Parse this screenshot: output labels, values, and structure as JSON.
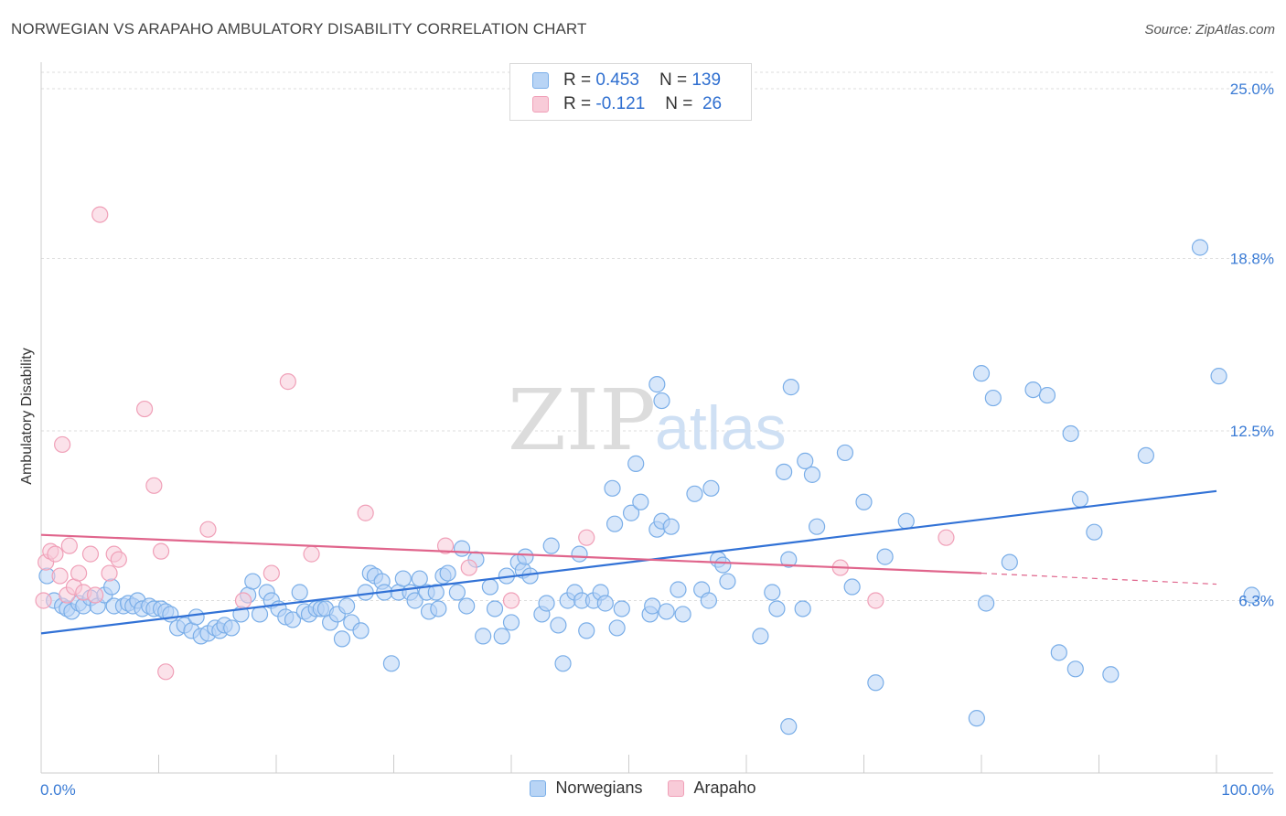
{
  "title": "NORWEGIAN VS ARAPAHO AMBULATORY DISABILITY CORRELATION CHART",
  "source": "Source: ZipAtlas.com",
  "watermark": {
    "zip": "ZIP",
    "atlas": "atlas"
  },
  "legend": {
    "rows": [
      {
        "r_label": "R =",
        "r_value": "0.453",
        "n_label": "N =",
        "n_value": "139",
        "color": "#7aaee8",
        "fill": "#b8d4f5"
      },
      {
        "r_label": "R =",
        "r_value": "-0.121",
        "n_label": "N =",
        "n_value": "26",
        "color": "#f0a0b8",
        "fill": "#f8cbd8"
      }
    ]
  },
  "bottom_legend": [
    {
      "label": "Norwegians",
      "color": "#7aaee8",
      "fill": "#b8d4f5"
    },
    {
      "label": "Arapaho",
      "color": "#f0a0b8",
      "fill": "#f8cbd8"
    }
  ],
  "chart_data": {
    "type": "scatter",
    "title": "NORWEGIAN VS ARAPAHO AMBULATORY DISABILITY CORRELATION CHART",
    "xlabel": "",
    "ylabel": "Ambulatory Disability",
    "xlim": [
      0,
      100
    ],
    "ylim": [
      0,
      25.6
    ],
    "x_tick_labels": [
      "0.0%",
      "100.0%"
    ],
    "y_ticks": [
      6.3,
      12.5,
      18.8,
      25.0
    ],
    "y_tick_labels": [
      "6.3%",
      "12.5%",
      "18.8%",
      "25.0%"
    ],
    "grid": true,
    "series": [
      {
        "name": "Norwegians",
        "color": "#7aaee8",
        "fill": "#b8d4f5",
        "trend": {
          "x": [
            0,
            100
          ],
          "y": [
            5.1,
            10.3
          ],
          "color": "#3272d6"
        },
        "points": [
          [
            0.5,
            7.2
          ],
          [
            1.1,
            6.3
          ],
          [
            1.8,
            6.1
          ],
          [
            2.2,
            6.0
          ],
          [
            2.6,
            5.9
          ],
          [
            3.2,
            6.2
          ],
          [
            3.6,
            6.1
          ],
          [
            4.2,
            6.4
          ],
          [
            4.8,
            6.1
          ],
          [
            5.4,
            6.5
          ],
          [
            6.0,
            6.8
          ],
          [
            6.2,
            6.1
          ],
          [
            7.0,
            6.1
          ],
          [
            7.4,
            6.2
          ],
          [
            7.8,
            6.1
          ],
          [
            8.2,
            6.3
          ],
          [
            8.6,
            6.0
          ],
          [
            9.2,
            6.1
          ],
          [
            9.6,
            6.0
          ],
          [
            10.2,
            6.0
          ],
          [
            10.6,
            5.9
          ],
          [
            11.0,
            5.8
          ],
          [
            11.6,
            5.3
          ],
          [
            12.2,
            5.4
          ],
          [
            12.8,
            5.2
          ],
          [
            13.2,
            5.7
          ],
          [
            13.6,
            5.0
          ],
          [
            14.2,
            5.1
          ],
          [
            14.8,
            5.3
          ],
          [
            15.2,
            5.2
          ],
          [
            15.6,
            5.4
          ],
          [
            16.2,
            5.3
          ],
          [
            17.0,
            5.8
          ],
          [
            17.6,
            6.5
          ],
          [
            18.0,
            7.0
          ],
          [
            18.6,
            5.8
          ],
          [
            19.2,
            6.6
          ],
          [
            19.6,
            6.3
          ],
          [
            20.2,
            6.0
          ],
          [
            20.8,
            5.7
          ],
          [
            21.4,
            5.6
          ],
          [
            22.0,
            6.6
          ],
          [
            22.4,
            5.9
          ],
          [
            22.8,
            5.8
          ],
          [
            23.4,
            6.0
          ],
          [
            23.8,
            6.0
          ],
          [
            24.2,
            6.0
          ],
          [
            24.6,
            5.5
          ],
          [
            25.2,
            5.8
          ],
          [
            25.6,
            4.9
          ],
          [
            26.0,
            6.1
          ],
          [
            26.4,
            5.5
          ],
          [
            27.2,
            5.2
          ],
          [
            27.6,
            6.6
          ],
          [
            28.0,
            7.3
          ],
          [
            28.4,
            7.2
          ],
          [
            29.0,
            7.0
          ],
          [
            29.2,
            6.6
          ],
          [
            29.8,
            4.0
          ],
          [
            30.4,
            6.6
          ],
          [
            30.8,
            7.1
          ],
          [
            31.4,
            6.6
          ],
          [
            31.8,
            6.3
          ],
          [
            32.2,
            7.1
          ],
          [
            32.8,
            6.6
          ],
          [
            33.0,
            5.9
          ],
          [
            33.6,
            6.6
          ],
          [
            33.8,
            6.0
          ],
          [
            34.2,
            7.2
          ],
          [
            34.6,
            7.3
          ],
          [
            35.4,
            6.6
          ],
          [
            35.8,
            8.2
          ],
          [
            36.2,
            6.1
          ],
          [
            37.0,
            7.8
          ],
          [
            37.6,
            5.0
          ],
          [
            38.2,
            6.8
          ],
          [
            38.6,
            6.0
          ],
          [
            39.2,
            5.0
          ],
          [
            39.6,
            7.2
          ],
          [
            40.0,
            5.5
          ],
          [
            40.6,
            7.7
          ],
          [
            41.0,
            7.4
          ],
          [
            41.2,
            7.9
          ],
          [
            41.6,
            7.2
          ],
          [
            42.6,
            5.8
          ],
          [
            43.0,
            6.2
          ],
          [
            43.4,
            8.3
          ],
          [
            44.0,
            5.4
          ],
          [
            44.4,
            4.0
          ],
          [
            44.8,
            6.3
          ],
          [
            45.4,
            6.6
          ],
          [
            45.8,
            8.0
          ],
          [
            46.0,
            6.3
          ],
          [
            46.4,
            5.2
          ],
          [
            47.0,
            6.3
          ],
          [
            47.6,
            6.6
          ],
          [
            48.0,
            6.2
          ],
          [
            48.8,
            9.1
          ],
          [
            48.6,
            10.4
          ],
          [
            49.0,
            5.3
          ],
          [
            49.4,
            6.0
          ],
          [
            50.2,
            9.5
          ],
          [
            50.6,
            11.3
          ],
          [
            51.0,
            9.9
          ],
          [
            51.8,
            5.8
          ],
          [
            52.0,
            6.1
          ],
          [
            52.4,
            8.9
          ],
          [
            52.8,
            9.2
          ],
          [
            52.4,
            14.2
          ],
          [
            52.8,
            13.6
          ],
          [
            53.6,
            9.0
          ],
          [
            53.2,
            5.9
          ],
          [
            54.2,
            6.7
          ],
          [
            54.6,
            5.8
          ],
          [
            55.6,
            10.2
          ],
          [
            56.2,
            6.7
          ],
          [
            56.8,
            6.3
          ],
          [
            57.0,
            10.4
          ],
          [
            57.6,
            7.8
          ],
          [
            58.0,
            7.6
          ],
          [
            58.4,
            7.0
          ],
          [
            61.2,
            5.0
          ],
          [
            62.2,
            6.6
          ],
          [
            62.6,
            6.0
          ],
          [
            63.2,
            11.0
          ],
          [
            63.6,
            7.8
          ],
          [
            63.8,
            14.1
          ],
          [
            63.6,
            1.7
          ],
          [
            64.8,
            6.0
          ],
          [
            65.0,
            11.4
          ],
          [
            65.6,
            10.9
          ],
          [
            66.0,
            9.0
          ],
          [
            68.4,
            11.7
          ],
          [
            70.0,
            9.9
          ],
          [
            69.0,
            6.8
          ],
          [
            71.8,
            7.9
          ],
          [
            71.0,
            3.3
          ],
          [
            73.6,
            9.2
          ],
          [
            79.6,
            2.0
          ],
          [
            80.0,
            14.6
          ],
          [
            80.4,
            6.2
          ],
          [
            81.0,
            13.7
          ],
          [
            82.4,
            7.7
          ],
          [
            84.4,
            14.0
          ],
          [
            85.6,
            13.8
          ],
          [
            86.6,
            4.4
          ],
          [
            87.6,
            12.4
          ],
          [
            88.4,
            10.0
          ],
          [
            89.6,
            8.8
          ],
          [
            88.0,
            3.8
          ],
          [
            91.0,
            3.6
          ],
          [
            94.0,
            11.6
          ],
          [
            98.6,
            19.2
          ],
          [
            100.2,
            14.5
          ],
          [
            103.0,
            6.5
          ]
        ]
      },
      {
        "name": "Arapaho",
        "color": "#f0a0b8",
        "fill": "#f8cbd8",
        "trend": {
          "x": [
            0,
            80
          ],
          "y": [
            8.7,
            7.3
          ],
          "dashed_to": [
            100,
            6.9
          ],
          "color": "#e0658c"
        },
        "points": [
          [
            0.2,
            6.3
          ],
          [
            0.4,
            7.7
          ],
          [
            0.8,
            8.1
          ],
          [
            1.2,
            8.0
          ],
          [
            1.6,
            7.2
          ],
          [
            1.8,
            12.0
          ],
          [
            2.2,
            6.5
          ],
          [
            2.4,
            8.3
          ],
          [
            2.8,
            6.8
          ],
          [
            3.2,
            7.3
          ],
          [
            3.6,
            6.6
          ],
          [
            4.2,
            8.0
          ],
          [
            4.6,
            6.5
          ],
          [
            5.0,
            20.4
          ],
          [
            5.8,
            7.3
          ],
          [
            6.2,
            8.0
          ],
          [
            6.6,
            7.8
          ],
          [
            8.8,
            13.3
          ],
          [
            9.6,
            10.5
          ],
          [
            10.2,
            8.1
          ],
          [
            10.6,
            3.7
          ],
          [
            14.2,
            8.9
          ],
          [
            17.2,
            6.3
          ],
          [
            19.6,
            7.3
          ],
          [
            21.0,
            14.3
          ],
          [
            23.0,
            8.0
          ],
          [
            27.6,
            9.5
          ],
          [
            34.4,
            8.3
          ],
          [
            36.4,
            7.5
          ],
          [
            40.0,
            6.3
          ],
          [
            46.4,
            8.6
          ],
          [
            68.0,
            7.5
          ],
          [
            71.0,
            6.3
          ],
          [
            77.0,
            8.6
          ]
        ]
      }
    ]
  }
}
